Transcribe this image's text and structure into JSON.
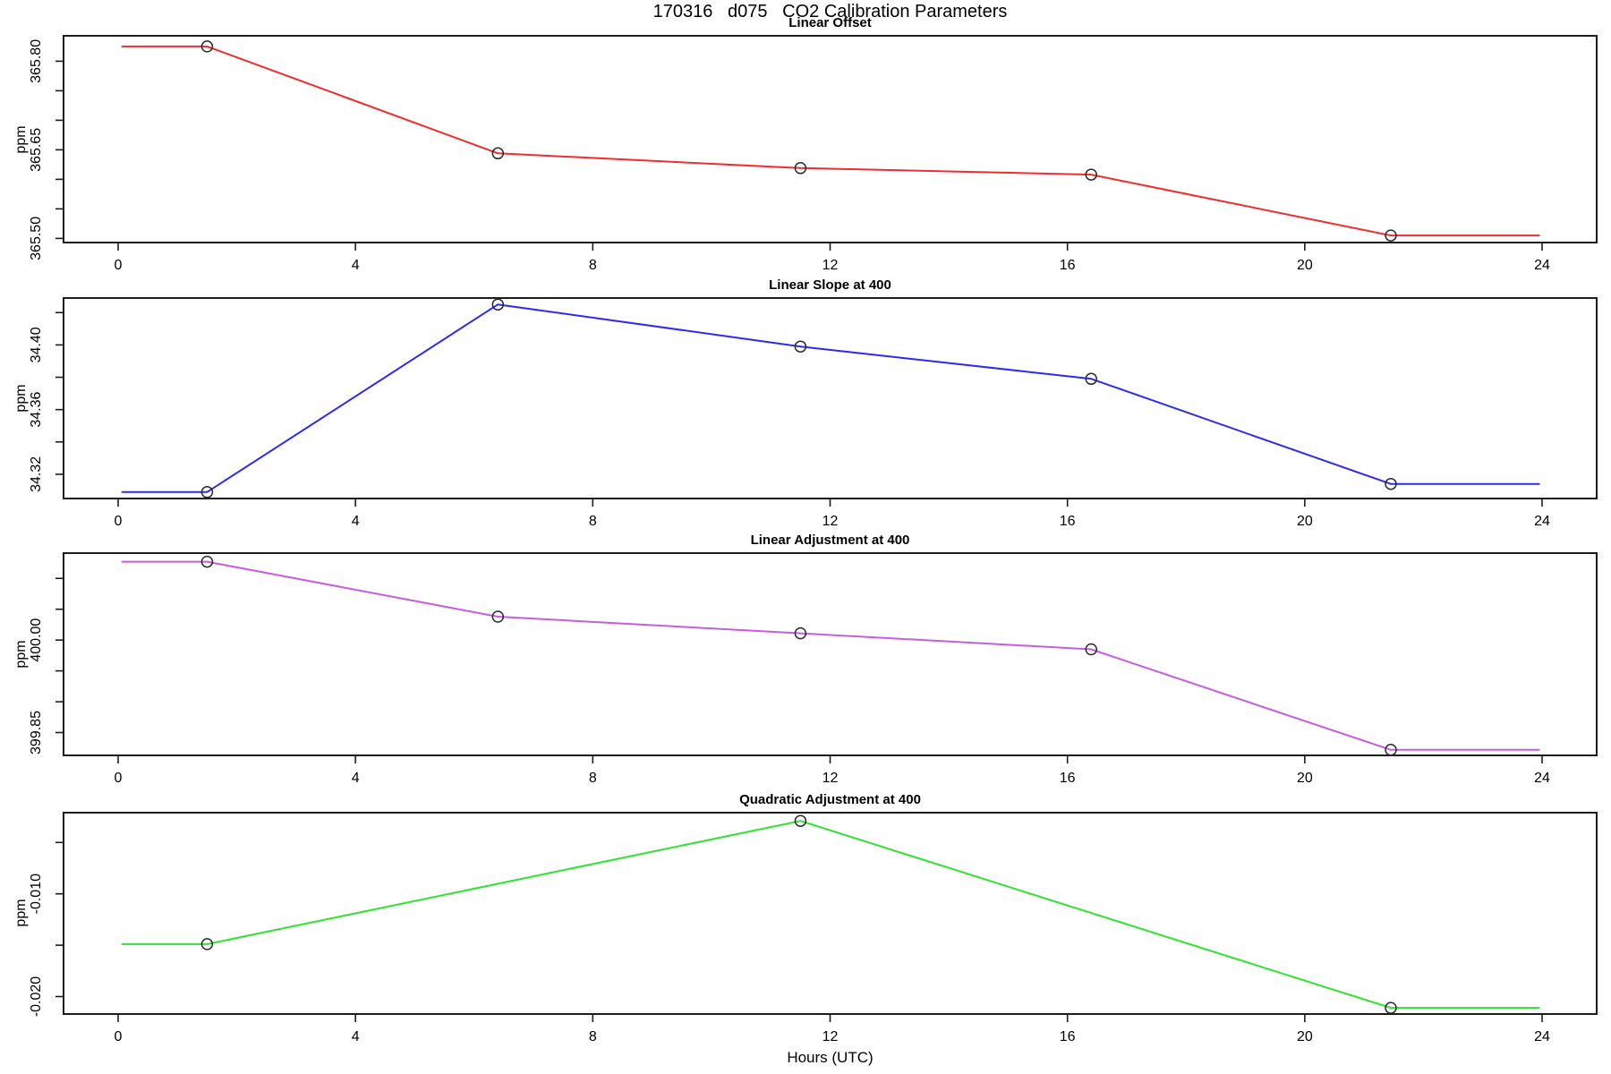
{
  "page": {
    "title": "170316   d075   CO2 Calibration Parameters",
    "xlabel": "Hours (UTC)"
  },
  "chart_data": [
    {
      "type": "line",
      "title": "Linear Offset",
      "ylabel": "ppm",
      "color": "#f32b2b",
      "marker": "open-circle",
      "x": [
        1.5,
        6.4,
        11.5,
        16.4,
        21.45
      ],
      "y": [
        365.825,
        365.644,
        365.619,
        365.608,
        365.505
      ],
      "line_ext_x": [
        0.07,
        23.95
      ],
      "xlim": [
        -0.92,
        24.92
      ],
      "ylim": [
        365.493,
        365.843
      ],
      "xticks": [
        0,
        4,
        8,
        12,
        16,
        20,
        24
      ],
      "yticks": [
        365.5,
        365.55,
        365.6,
        365.65,
        365.7,
        365.75,
        365.8
      ],
      "ytick_labels": [
        "365.50",
        "",
        "",
        "365.65",
        "",
        "",
        "365.80"
      ],
      "grid": false,
      "legend": "none"
    },
    {
      "type": "line",
      "title": "Linear Slope at 400",
      "ylabel": "ppm",
      "color": "#2b2bf3",
      "marker": "open-circle",
      "x": [
        1.5,
        6.4,
        11.5,
        16.4,
        21.45
      ],
      "y": [
        34.309,
        34.425,
        34.399,
        34.379,
        34.314
      ],
      "line_ext_x": [
        0.07,
        23.95
      ],
      "xlim": [
        -0.92,
        24.92
      ],
      "ylim": [
        34.305,
        34.429
      ],
      "xticks": [
        0,
        4,
        8,
        12,
        16,
        20,
        24
      ],
      "yticks": [
        34.32,
        34.34,
        34.36,
        34.38,
        34.4,
        34.42
      ],
      "ytick_labels": [
        "34.32",
        "",
        "34.36",
        "",
        "34.40",
        ""
      ],
      "grid": false,
      "legend": "none"
    },
    {
      "type": "line",
      "title": "Linear Adjustment at 400",
      "ylabel": "ppm",
      "color": "#c85ce0",
      "marker": "open-circle",
      "x": [
        1.5,
        6.4,
        11.5,
        16.4,
        21.45
      ],
      "y": [
        400.127,
        400.038,
        400.011,
        399.985,
        399.822
      ],
      "line_ext_x": [
        0.07,
        23.95
      ],
      "xlim": [
        -0.92,
        24.92
      ],
      "ylim": [
        399.813,
        400.141
      ],
      "xticks": [
        0,
        4,
        8,
        12,
        16,
        20,
        24
      ],
      "yticks": [
        399.85,
        399.9,
        399.95,
        400.0,
        400.05,
        400.1
      ],
      "ytick_labels": [
        "399.85",
        "",
        "",
        "400.00",
        "",
        ""
      ],
      "grid": false,
      "legend": "none"
    },
    {
      "type": "line",
      "title": "Quadratic Adjustment at 400",
      "ylabel": "ppm",
      "color": "#2fe32f",
      "marker": "open-circle",
      "x": [
        1.5,
        11.5,
        21.45
      ],
      "y": [
        -0.0149,
        -0.0029,
        -0.0211
      ],
      "line_ext_x": [
        0.07,
        23.95
      ],
      "xlim": [
        -0.92,
        24.92
      ],
      "ylim": [
        -0.0217,
        -0.0021
      ],
      "xticks": [
        0,
        4,
        8,
        12,
        16,
        20,
        24
      ],
      "yticks": [
        -0.02,
        -0.015,
        -0.01,
        -0.005
      ],
      "ytick_labels": [
        "-0.020",
        "",
        "-0.010",
        ""
      ],
      "grid": false,
      "legend": "none"
    }
  ]
}
